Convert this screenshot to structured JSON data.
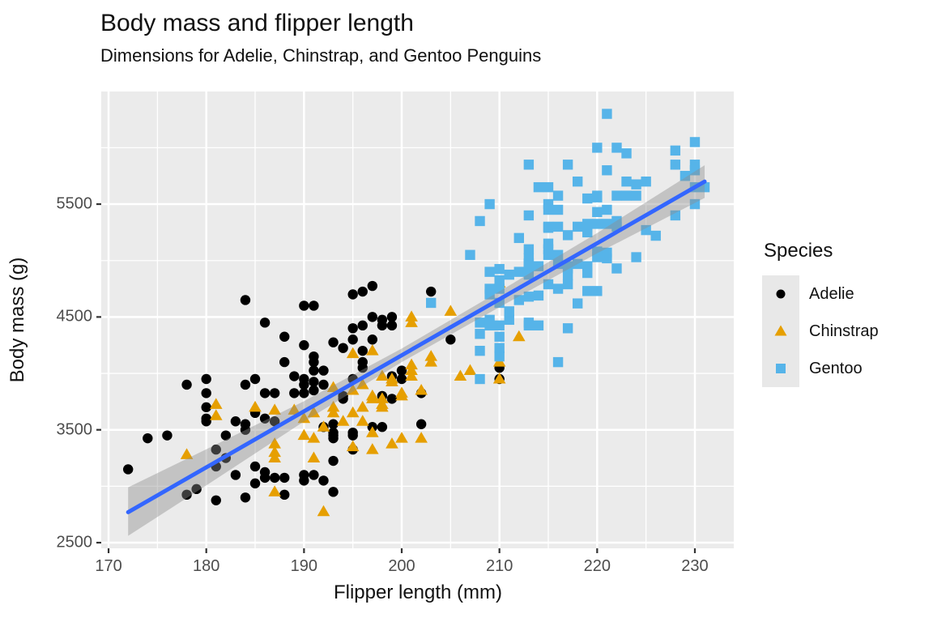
{
  "header": {
    "title": "Body mass and flipper length",
    "subtitle": "Dimensions for Adelie, Chinstrap, and Gentoo Penguins"
  },
  "legend": {
    "title": "Species",
    "items": [
      {
        "label": "Adelie",
        "shape": "circle",
        "color": "#000000"
      },
      {
        "label": "Chinstrap",
        "shape": "triangle",
        "color": "#E69F00"
      },
      {
        "label": "Gentoo",
        "shape": "square",
        "color": "#56B4E9"
      }
    ]
  },
  "colors": {
    "panel_background": "#EBEBEB",
    "grid": "#FFFFFF",
    "trend_line": "#3366FF",
    "ribbon": "#8C8C8C",
    "tick_text": "#4D4D4D",
    "tick_mark": "#333333",
    "text": "#111111"
  },
  "chart_data": {
    "type": "scatter",
    "title": "Body mass and flipper length",
    "subtitle": "Dimensions for Adelie, Chinstrap, and Gentoo Penguins",
    "xlabel": "Flipper length (mm)",
    "ylabel": "Body mass (g)",
    "xlim": [
      169.25,
      233.98
    ],
    "ylim": [
      2450,
      6498
    ],
    "x_ticks": [
      170,
      180,
      190,
      200,
      210,
      220,
      230
    ],
    "x_minor_ticks": [
      175,
      185,
      195,
      205,
      215,
      225
    ],
    "y_ticks": [
      2500,
      3500,
      4500,
      5500
    ],
    "y_minor_ticks": [
      3000,
      4000,
      5000,
      6000
    ],
    "grid": true,
    "legend_position": "right",
    "series": [
      {
        "name": "Adelie",
        "shape": "circle",
        "color": "#000000",
        "points": [
          [
            172,
            3150
          ],
          [
            174,
            3425
          ],
          [
            176,
            3450
          ],
          [
            178,
            3900
          ],
          [
            178,
            2925
          ],
          [
            179,
            2975
          ],
          [
            180,
            3950
          ],
          [
            180,
            3825
          ],
          [
            180,
            3700
          ],
          [
            180,
            3600
          ],
          [
            180,
            3575
          ],
          [
            181,
            3325
          ],
          [
            181,
            3175
          ],
          [
            181,
            2875
          ],
          [
            182,
            3450
          ],
          [
            182,
            3250
          ],
          [
            183,
            3575
          ],
          [
            183,
            3100
          ],
          [
            184,
            3900
          ],
          [
            184,
            3550
          ],
          [
            184,
            3500
          ],
          [
            184,
            2900
          ],
          [
            184,
            4650
          ],
          [
            185,
            3950
          ],
          [
            185,
            3650
          ],
          [
            185,
            3175
          ],
          [
            185,
            3025
          ],
          [
            186,
            4450
          ],
          [
            186,
            3825
          ],
          [
            186,
            3600
          ],
          [
            186,
            3125
          ],
          [
            186,
            3075
          ],
          [
            187,
            3825
          ],
          [
            187,
            3575
          ],
          [
            187,
            3075
          ],
          [
            188,
            4325
          ],
          [
            188,
            4100
          ],
          [
            188,
            2925
          ],
          [
            188,
            3075
          ],
          [
            189,
            3975
          ],
          [
            189,
            3825
          ],
          [
            190,
            4250
          ],
          [
            190,
            4600
          ],
          [
            190,
            3950
          ],
          [
            190,
            3900
          ],
          [
            190,
            3825
          ],
          [
            190,
            3100
          ],
          [
            190,
            3050
          ],
          [
            191,
            4600
          ],
          [
            191,
            4150
          ],
          [
            191,
            4100
          ],
          [
            191,
            4025
          ],
          [
            191,
            3925
          ],
          [
            191,
            3850
          ],
          [
            191,
            3100
          ],
          [
            192,
            4025
          ],
          [
            192,
            3900
          ],
          [
            192,
            3525
          ],
          [
            192,
            3050
          ],
          [
            193,
            4275
          ],
          [
            193,
            3550
          ],
          [
            193,
            3475
          ],
          [
            193,
            3450
          ],
          [
            193,
            3425
          ],
          [
            193,
            3225
          ],
          [
            193,
            2950
          ],
          [
            194,
            4225
          ],
          [
            194,
            3800
          ],
          [
            194,
            3775
          ],
          [
            195,
            4700
          ],
          [
            195,
            4400
          ],
          [
            195,
            4300
          ],
          [
            195,
            3950
          ],
          [
            195,
            3475
          ],
          [
            195,
            3450
          ],
          [
            195,
            3325
          ],
          [
            196,
            4725
          ],
          [
            196,
            4425
          ],
          [
            196,
            4200
          ],
          [
            196,
            4100
          ],
          [
            196,
            4050
          ],
          [
            197,
            4775
          ],
          [
            197,
            4500
          ],
          [
            197,
            4300
          ],
          [
            197,
            3525
          ],
          [
            198,
            4475
          ],
          [
            198,
            4425
          ],
          [
            198,
            3800
          ],
          [
            198,
            3525
          ],
          [
            199,
            4500
          ],
          [
            199,
            4425
          ],
          [
            199,
            3975
          ],
          [
            199,
            3775
          ],
          [
            200,
            4025
          ],
          [
            200,
            3950
          ],
          [
            202,
            3825
          ],
          [
            202,
            3550
          ],
          [
            203,
            4725
          ],
          [
            205,
            4300
          ],
          [
            210,
            4050
          ],
          [
            210,
            3950
          ]
        ]
      },
      {
        "name": "Chinstrap",
        "shape": "triangle",
        "color": "#E69F00",
        "points": [
          [
            178,
            3280
          ],
          [
            181,
            3725
          ],
          [
            181,
            3625
          ],
          [
            185,
            3700
          ],
          [
            187,
            3675
          ],
          [
            187,
            3375
          ],
          [
            187,
            3300
          ],
          [
            187,
            3250
          ],
          [
            187,
            2950
          ],
          [
            189,
            3675
          ],
          [
            190,
            3600
          ],
          [
            190,
            3450
          ],
          [
            191,
            3650
          ],
          [
            191,
            3425
          ],
          [
            191,
            3250
          ],
          [
            192,
            3525
          ],
          [
            192,
            2775
          ],
          [
            193,
            3875
          ],
          [
            193,
            3700
          ],
          [
            193,
            3650
          ],
          [
            194,
            3575
          ],
          [
            195,
            4175
          ],
          [
            195,
            3850
          ],
          [
            195,
            3650
          ],
          [
            195,
            3350
          ],
          [
            196,
            3900
          ],
          [
            196,
            3700
          ],
          [
            196,
            3575
          ],
          [
            197,
            4200
          ],
          [
            197,
            3800
          ],
          [
            197,
            3775
          ],
          [
            197,
            3475
          ],
          [
            197,
            3325
          ],
          [
            198,
            3975
          ],
          [
            198,
            3775
          ],
          [
            198,
            3725
          ],
          [
            198,
            3700
          ],
          [
            199,
            3950
          ],
          [
            199,
            3925
          ],
          [
            199,
            3375
          ],
          [
            200,
            3825
          ],
          [
            200,
            3800
          ],
          [
            200,
            3425
          ],
          [
            201,
            4500
          ],
          [
            201,
            4450
          ],
          [
            201,
            4075
          ],
          [
            201,
            4025
          ],
          [
            201,
            3975
          ],
          [
            202,
            3850
          ],
          [
            202,
            3425
          ],
          [
            203,
            4150
          ],
          [
            203,
            4100
          ],
          [
            205,
            4550
          ],
          [
            206,
            3975
          ],
          [
            207,
            4025
          ],
          [
            210,
            4800
          ],
          [
            210,
            4100
          ],
          [
            210,
            3950
          ],
          [
            212,
            4325
          ]
        ]
      },
      {
        "name": "Gentoo",
        "shape": "square",
        "color": "#56B4E9",
        "points": [
          [
            203,
            4625
          ],
          [
            207,
            5050
          ],
          [
            208,
            5350
          ],
          [
            208,
            4450
          ],
          [
            208,
            4350
          ],
          [
            208,
            4200
          ],
          [
            208,
            3950
          ],
          [
            209,
            5500
          ],
          [
            209,
            4900
          ],
          [
            209,
            4750
          ],
          [
            209,
            4700
          ],
          [
            209,
            4475
          ],
          [
            209,
            4425
          ],
          [
            210,
            4925
          ],
          [
            210,
            4825
          ],
          [
            210,
            4750
          ],
          [
            210,
            4625
          ],
          [
            210,
            4425
          ],
          [
            210,
            4325
          ],
          [
            210,
            4225
          ],
          [
            210,
            4150
          ],
          [
            211,
            4875
          ],
          [
            211,
            4550
          ],
          [
            211,
            4475
          ],
          [
            212,
            5200
          ],
          [
            212,
            4900
          ],
          [
            212,
            4650
          ],
          [
            213,
            5850
          ],
          [
            213,
            5400
          ],
          [
            213,
            5100
          ],
          [
            213,
            5020
          ],
          [
            213,
            4975
          ],
          [
            213,
            4970
          ],
          [
            213,
            4930
          ],
          [
            213,
            4875
          ],
          [
            213,
            4680
          ],
          [
            213,
            4450
          ],
          [
            213,
            4425
          ],
          [
            214,
            5650
          ],
          [
            214,
            4950
          ],
          [
            214,
            4690
          ],
          [
            214,
            4425
          ],
          [
            215,
            5650
          ],
          [
            215,
            5500
          ],
          [
            215,
            5450
          ],
          [
            215,
            5300
          ],
          [
            215,
            5290
          ],
          [
            215,
            5150
          ],
          [
            215,
            5100
          ],
          [
            215,
            5050
          ],
          [
            215,
            4790
          ],
          [
            216,
            5575
          ],
          [
            216,
            5450
          ],
          [
            216,
            5300
          ],
          [
            216,
            5050
          ],
          [
            216,
            4970
          ],
          [
            216,
            4750
          ],
          [
            216,
            4100
          ],
          [
            217,
            5850
          ],
          [
            217,
            5225
          ],
          [
            217,
            4950
          ],
          [
            217,
            4930
          ],
          [
            217,
            4870
          ],
          [
            217,
            4790
          ],
          [
            217,
            4400
          ],
          [
            218,
            5700
          ],
          [
            218,
            5300
          ],
          [
            218,
            4970
          ],
          [
            218,
            4620
          ],
          [
            219,
            5550
          ],
          [
            219,
            5325
          ],
          [
            219,
            5300
          ],
          [
            219,
            5250
          ],
          [
            219,
            4950
          ],
          [
            219,
            4890
          ],
          [
            219,
            4730
          ],
          [
            220,
            6000
          ],
          [
            220,
            5575
          ],
          [
            220,
            5560
          ],
          [
            220,
            5430
          ],
          [
            220,
            5325
          ],
          [
            220,
            5080
          ],
          [
            220,
            5030
          ],
          [
            220,
            4730
          ],
          [
            221,
            6300
          ],
          [
            221,
            5800
          ],
          [
            221,
            5450
          ],
          [
            221,
            5325
          ],
          [
            221,
            5070
          ],
          [
            221,
            5020
          ],
          [
            222,
            6000
          ],
          [
            222,
            5575
          ],
          [
            222,
            5350
          ],
          [
            222,
            5300
          ],
          [
            222,
            4930
          ],
          [
            223,
            5950
          ],
          [
            223,
            5700
          ],
          [
            223,
            5575
          ],
          [
            224,
            5675
          ],
          [
            224,
            5575
          ],
          [
            224,
            5030
          ],
          [
            225,
            5700
          ],
          [
            225,
            5270
          ],
          [
            226,
            5220
          ],
          [
            228,
            5975
          ],
          [
            228,
            5850
          ],
          [
            228,
            5400
          ],
          [
            229,
            5750
          ],
          [
            230,
            6050
          ],
          [
            230,
            5850
          ],
          [
            230,
            5800
          ],
          [
            230,
            5650
          ],
          [
            230,
            5500
          ],
          [
            231,
            5650
          ]
        ]
      }
    ],
    "trend": {
      "type": "linear_fit",
      "color": "#3366FF",
      "line": [
        [
          172,
          2770
        ],
        [
          231,
          5700
        ]
      ],
      "ribbon_upper": [
        [
          172,
          2990
        ],
        [
          180,
          3327
        ],
        [
          190,
          3754
        ],
        [
          200,
          4220
        ],
        [
          210,
          4727
        ],
        [
          220,
          5244
        ],
        [
          231,
          5845
        ]
      ],
      "ribbon_lower": [
        [
          172,
          2560
        ],
        [
          180,
          3007
        ],
        [
          190,
          3574
        ],
        [
          200,
          4100
        ],
        [
          210,
          4587
        ],
        [
          220,
          5064
        ],
        [
          231,
          5555
        ]
      ]
    }
  }
}
